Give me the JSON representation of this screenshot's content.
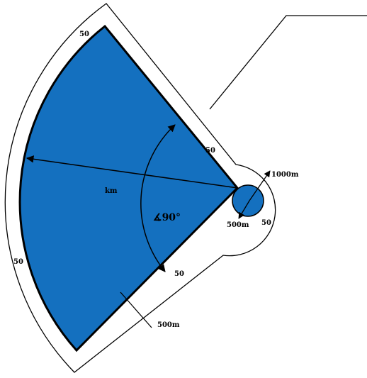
{
  "diagram": {
    "fill_color": "#1470bf",
    "outline_color": "#000000",
    "buffer_left": "50",
    "buffer_top_left": "50",
    "buffer_upper_edge": "50",
    "buffer_circle": "50",
    "buffer_lower_edge": "50",
    "circle_outer_radius": "1000m",
    "circle_inner_radius": "500m",
    "sector_edge_distance": "500m",
    "range_label": "km",
    "angle_label": "90°",
    "angle_symbol": "∡"
  }
}
